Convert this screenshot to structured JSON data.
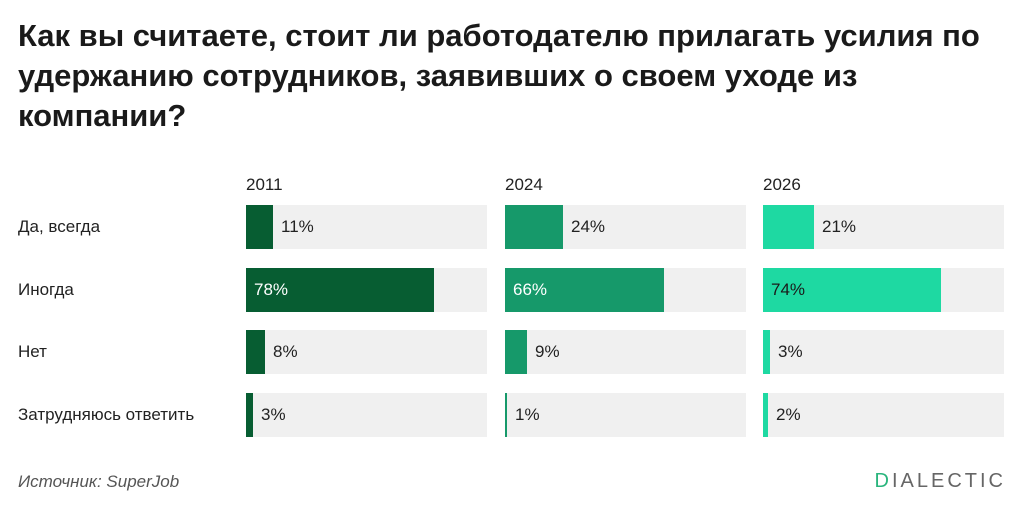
{
  "title": "Как вы считаете, стоит ли работодателю прилагать усилия по удержанию сотрудников, заявивших о своем уходе из компании?",
  "source": "Источник: SuperJob",
  "logo": {
    "first": "D",
    "rest": "IALECTIC"
  },
  "colors": {
    "2011": "#075d32",
    "2024": "#16996a",
    "2026": "#1ed9a2",
    "track": "#f0f0f0"
  },
  "chart_data": {
    "type": "bar",
    "layout": "small-multiples-horizontal",
    "title": "Как вы считаете, стоит ли работодателю прилагать усилия по удержанию сотрудников, заявивших о своем уходе из компании?",
    "categories": [
      "Да, всегда",
      "Иногда",
      "Нет",
      "Затрудняюсь ответить"
    ],
    "xlim": [
      0,
      100
    ],
    "unit": "%",
    "series": [
      {
        "name": "2011",
        "values": [
          11,
          78,
          8,
          3
        ],
        "labels": [
          "11%",
          "78%",
          "8%",
          "3%"
        ]
      },
      {
        "name": "2024",
        "values": [
          24,
          66,
          9,
          1
        ],
        "labels": [
          "24%",
          "66%",
          "9%",
          "1%"
        ]
      },
      {
        "name": "2026",
        "values": [
          21,
          74,
          3,
          2
        ],
        "labels": [
          "21%",
          "74%",
          "3%",
          "2%"
        ]
      }
    ]
  }
}
